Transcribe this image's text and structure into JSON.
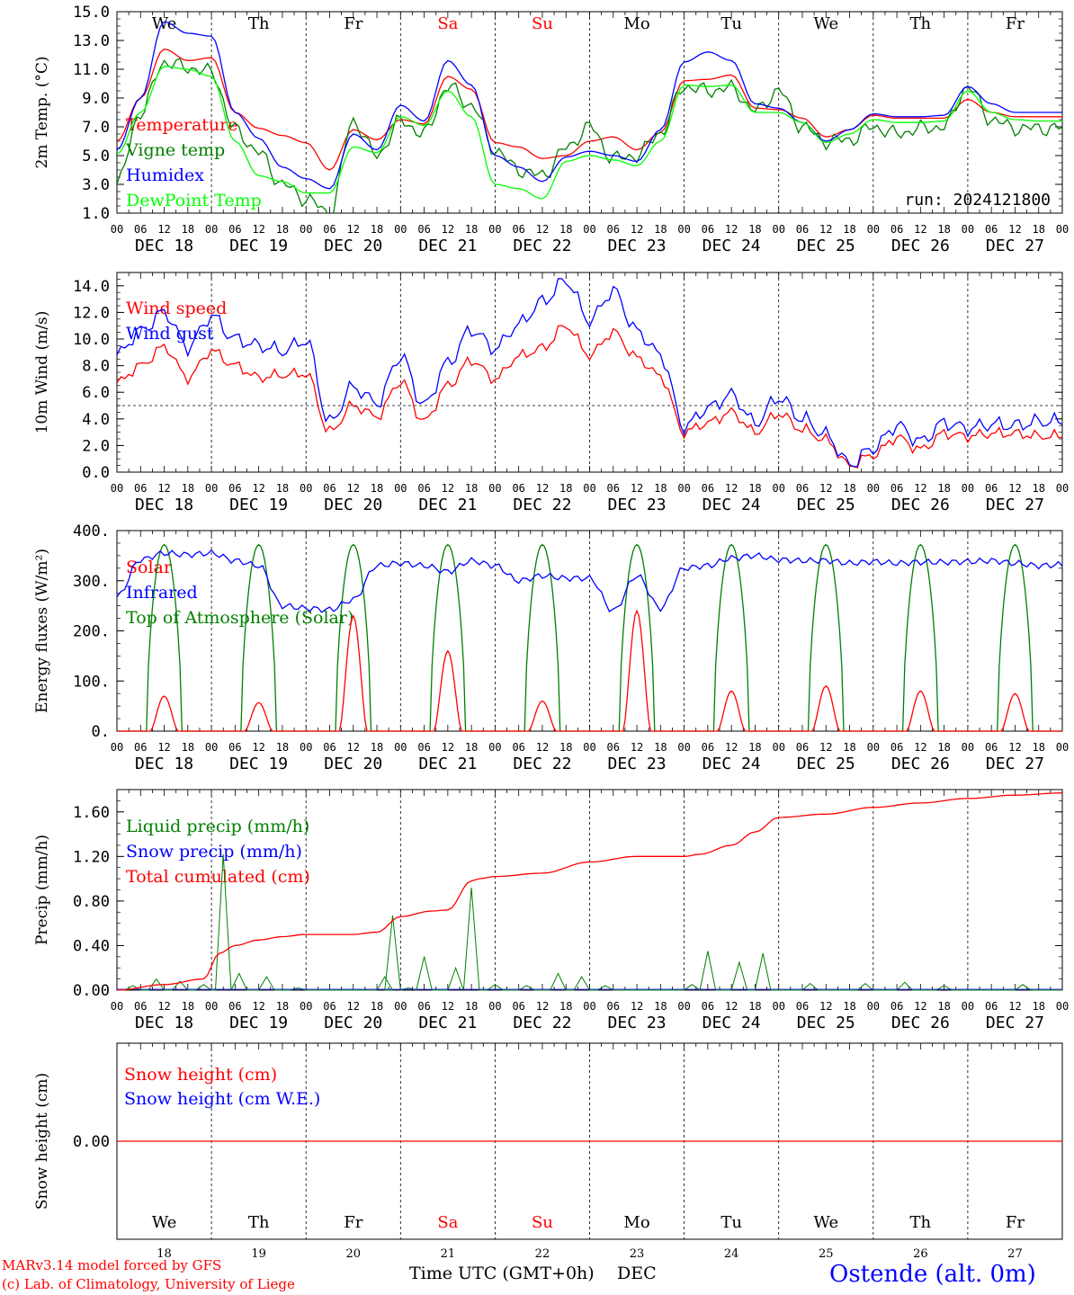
{
  "chart_data": [
    {
      "type": "line",
      "ylabel": "2m Temp. (oC)",
      "ylim": [
        1,
        15
      ],
      "yticks": [
        "1.0",
        "3.0",
        "5.0",
        "7.0",
        "9.0",
        "11.0",
        "13.0",
        "15.0"
      ],
      "ytick_values": [
        1,
        3,
        5,
        7,
        9,
        11,
        13,
        15
      ],
      "run_label": "run: 2024121800",
      "x_hours": [
        0,
        6,
        12,
        18,
        24,
        30,
        36,
        42,
        48,
        54,
        60,
        66,
        72,
        78,
        84,
        90,
        96,
        102,
        108,
        114,
        120,
        126,
        132,
        138,
        144,
        150,
        156,
        162,
        168,
        174,
        180,
        186,
        192,
        198,
        204,
        210,
        216,
        222,
        228,
        234,
        240
      ],
      "series": [
        {
          "name": "Temperature",
          "color": "#ff0000",
          "values": [
            6.0,
            9.0,
            12.4,
            11.6,
            11.8,
            8.0,
            6.9,
            6.4,
            5.9,
            4.0,
            6.8,
            6.1,
            7.5,
            7.2,
            10.5,
            9.6,
            5.9,
            5.6,
            4.8,
            5.0,
            6.0,
            6.3,
            5.4,
            6.6,
            10.2,
            10.3,
            10.6,
            8.3,
            8.2,
            7.6,
            6.3,
            6.8,
            7.8,
            7.6,
            7.6,
            7.6,
            8.9,
            8.0,
            7.7,
            7.7,
            7.7
          ]
        },
        {
          "name": "Vigne temp",
          "color": "#008000",
          "values": [
            3.0,
            8.0,
            11.5,
            11.1,
            10.8,
            6.8,
            5.2,
            3.0,
            2.0,
            1.0,
            7.4,
            5.0,
            7.4,
            6.5,
            9.8,
            8.5,
            5.4,
            4.0,
            3.6,
            5.5,
            7.0,
            4.8,
            5.0,
            6.6,
            9.8,
            9.5,
            9.7,
            8.1,
            9.5,
            7.0,
            6.0,
            6.1,
            7.0,
            6.5,
            6.9,
            7.0,
            9.8,
            7.5,
            6.9,
            6.9,
            6.9
          ]
        },
        {
          "name": "Humidex",
          "color": "#0000ff",
          "values": [
            5.4,
            9.0,
            14.3,
            13.5,
            13.3,
            8.0,
            6.2,
            4.2,
            3.4,
            2.7,
            6.5,
            5.4,
            8.5,
            7.4,
            11.6,
            9.9,
            5.0,
            4.2,
            3.2,
            4.9,
            5.3,
            5.0,
            4.6,
            6.8,
            11.5,
            12.2,
            11.6,
            8.6,
            8.3,
            7.3,
            6.0,
            6.8,
            7.9,
            7.7,
            7.7,
            7.8,
            9.8,
            8.6,
            8.0,
            8.0,
            8.0
          ]
        },
        {
          "name": "DewPoint Temp",
          "color": "#00ff00",
          "values": [
            5.1,
            8.0,
            11.2,
            11.0,
            10.5,
            6.0,
            3.6,
            3.2,
            2.4,
            2.4,
            5.6,
            5.2,
            7.7,
            7.1,
            9.5,
            7.7,
            3.0,
            2.7,
            2.0,
            4.6,
            5.0,
            4.7,
            4.3,
            6.0,
            9.9,
            9.8,
            9.9,
            8.0,
            8.0,
            7.3,
            5.9,
            6.5,
            7.5,
            7.3,
            7.3,
            7.4,
            9.5,
            8.0,
            7.5,
            7.4,
            7.4
          ]
        }
      ]
    },
    {
      "type": "line",
      "ylabel": "10m Wind (m/s)",
      "ylim": [
        0,
        15
      ],
      "yticks": [
        "0.0",
        "2.0",
        "4.0",
        "6.0",
        "8.0",
        "10.0",
        "12.0",
        "14.0"
      ],
      "ytick_values": [
        0,
        2,
        4,
        6,
        8,
        10,
        12,
        14
      ],
      "reference_line": 5,
      "x_hours": [
        0,
        6,
        12,
        18,
        24,
        30,
        36,
        42,
        48,
        54,
        60,
        66,
        72,
        78,
        84,
        90,
        96,
        102,
        108,
        114,
        120,
        126,
        132,
        138,
        144,
        150,
        156,
        162,
        168,
        174,
        180,
        186,
        192,
        198,
        204,
        210,
        216,
        222,
        228,
        234,
        240
      ],
      "series": [
        {
          "name": "Wind speed",
          "color": "#ff0000",
          "values": [
            6.7,
            8.0,
            9.4,
            7.1,
            9.1,
            8.0,
            7.1,
            7.3,
            7.4,
            3.0,
            5.0,
            4.2,
            6.8,
            3.8,
            6.5,
            8.4,
            7.0,
            8.7,
            9.3,
            11.0,
            8.8,
            10.5,
            8.6,
            7.2,
            3.0,
            3.7,
            4.5,
            3.0,
            4.4,
            3.2,
            2.4,
            0.5,
            1.3,
            2.6,
            1.7,
            2.9,
            2.7,
            2.9,
            2.9,
            2.7,
            2.7
          ]
        },
        {
          "name": "Wind gust",
          "color": "#0000ff",
          "values": [
            8.8,
            10.6,
            12.0,
            9.4,
            11.7,
            10.0,
            9.5,
            9.1,
            9.9,
            3.7,
            6.4,
            5.2,
            8.7,
            5.0,
            8.2,
            10.7,
            9.3,
            11.1,
            12.8,
            14.4,
            11.4,
            13.6,
            10.6,
            8.8,
            3.4,
            4.8,
            5.8,
            3.7,
            5.6,
            4.0,
            2.8,
            0.6,
            1.8,
            3.5,
            2.3,
            3.7,
            3.3,
            3.6,
            3.5,
            3.8,
            3.8
          ]
        }
      ]
    },
    {
      "type": "line",
      "ylabel": "Energy fluxes (W/m2)",
      "ylim": [
        0,
        400
      ],
      "yticks": [
        "0.",
        "100.",
        "200.",
        "300.",
        "400."
      ],
      "ytick_values": [
        0,
        100,
        200,
        300,
        400
      ],
      "series": [
        {
          "name": "Solar",
          "color": "#ff0000",
          "daily_peaks": [
            70,
            57,
            230,
            160,
            60,
            240,
            80,
            90,
            80,
            75
          ]
        },
        {
          "name": "Infrared",
          "color": "#0000ff",
          "x_hours": [
            0,
            6,
            12,
            18,
            24,
            30,
            36,
            42,
            48,
            54,
            60,
            66,
            72,
            78,
            84,
            90,
            96,
            102,
            108,
            114,
            120,
            126,
            132,
            138,
            144,
            150,
            156,
            162,
            168,
            174,
            180,
            186,
            192,
            198,
            204,
            210,
            216,
            222,
            228,
            234,
            240
          ],
          "values": [
            268,
            342,
            355,
            352,
            355,
            340,
            330,
            250,
            245,
            242,
            262,
            330,
            335,
            330,
            318,
            340,
            330,
            300,
            310,
            305,
            305,
            240,
            310,
            245,
            325,
            330,
            345,
            350,
            342,
            340,
            340,
            335,
            338,
            335,
            337,
            337,
            338,
            340,
            335,
            330,
            332
          ]
        },
        {
          "name": "Top of Atmosphere (Solar)",
          "color": "#008000",
          "daily_peaks": [
            372,
            372,
            372,
            372,
            372,
            372,
            372,
            372,
            372,
            372
          ]
        }
      ]
    },
    {
      "type": "line",
      "ylabel": "Precip (mm/h)",
      "ylim": [
        0,
        1.8
      ],
      "yticks": [
        "0.00",
        "0.40",
        "0.80",
        "1.20",
        "1.60"
      ],
      "ytick_values": [
        0,
        0.4,
        0.8,
        1.2,
        1.6
      ],
      "series": [
        {
          "name": "Liquid precip (mm/h)",
          "color": "#008000",
          "spikes": [
            [
              4,
              0.04
            ],
            [
              10,
              0.1
            ],
            [
              16,
              0.08
            ],
            [
              22,
              0.05
            ],
            [
              27,
              1.22
            ],
            [
              31,
              0.15
            ],
            [
              38,
              0.12
            ],
            [
              46,
              0.02
            ],
            [
              68,
              0.12
            ],
            [
              70,
              0.67
            ],
            [
              74,
              0.02
            ],
            [
              78,
              0.3
            ],
            [
              86,
              0.2
            ],
            [
              90,
              0.92
            ],
            [
              96,
              0.05
            ],
            [
              104,
              0.04
            ],
            [
              112,
              0.15
            ],
            [
              118,
              0.12
            ],
            [
              124,
              0.04
            ],
            [
              146,
              0.05
            ],
            [
              150,
              0.35
            ],
            [
              158,
              0.25
            ],
            [
              164,
              0.33
            ],
            [
              176,
              0.06
            ],
            [
              190,
              0.06
            ],
            [
              200,
              0.07
            ],
            [
              210,
              0.04
            ],
            [
              230,
              0.05
            ]
          ]
        },
        {
          "name": "Snow precip (mm/h)",
          "color": "#0000ff",
          "values": [
            0
          ]
        },
        {
          "name": "Total cumulated (cm)",
          "color": "#ff0000",
          "x_hours": [
            0,
            12,
            22,
            26,
            30,
            36,
            42,
            48,
            60,
            66,
            72,
            80,
            84,
            90,
            92,
            96,
            108,
            120,
            132,
            144,
            148,
            156,
            162,
            168,
            180,
            192,
            204,
            216,
            228,
            240
          ],
          "values": [
            0.0,
            0.05,
            0.1,
            0.33,
            0.4,
            0.45,
            0.48,
            0.5,
            0.5,
            0.52,
            0.66,
            0.71,
            0.72,
            0.98,
            1.0,
            1.02,
            1.05,
            1.15,
            1.2,
            1.2,
            1.22,
            1.3,
            1.42,
            1.55,
            1.58,
            1.64,
            1.68,
            1.72,
            1.75,
            1.77
          ]
        }
      ]
    },
    {
      "type": "line",
      "ylabel": "Snow height (cm)",
      "yticks": [
        "0.00"
      ],
      "series": [
        {
          "name": "Snow height (cm)",
          "color": "#ff0000",
          "values": [
            0,
            0
          ]
        },
        {
          "name": "Snow height (cm W.E.)",
          "color": "#0000ff",
          "values": [
            0,
            0
          ]
        }
      ]
    }
  ],
  "x_axis": {
    "hour_ticks": [
      "00",
      "06",
      "12",
      "18"
    ],
    "end_tick": "00",
    "date_labels": [
      "DEC 18",
      "DEC 19",
      "DEC 20",
      "DEC 21",
      "DEC 22",
      "DEC 23",
      "DEC 24",
      "DEC 25",
      "DEC 26",
      "DEC 27"
    ],
    "weekdays": [
      "We",
      "Th",
      "Fr",
      "Sa",
      "Su",
      "Mo",
      "Tu",
      "We",
      "Th",
      "Fr"
    ],
    "weekend_flags": [
      false,
      false,
      false,
      true,
      true,
      false,
      false,
      false,
      false,
      false
    ],
    "day_numbers": [
      "18",
      "19",
      "20",
      "21",
      "22",
      "23",
      "24",
      "25",
      "26",
      "27"
    ],
    "xlabel": "Time UTC (GMT+0h)",
    "month": "DEC"
  },
  "colors": {
    "weekday": "#000000",
    "weekend": "#ff0000",
    "station": "#0000ff",
    "credit": "#ff0000"
  },
  "footer": {
    "credit_line1": "MARv3.14 model forced by GFS",
    "credit_line2": "(c) Lab. of Climatology, University of Liege",
    "station": "Ostende (alt. 0m)"
  }
}
